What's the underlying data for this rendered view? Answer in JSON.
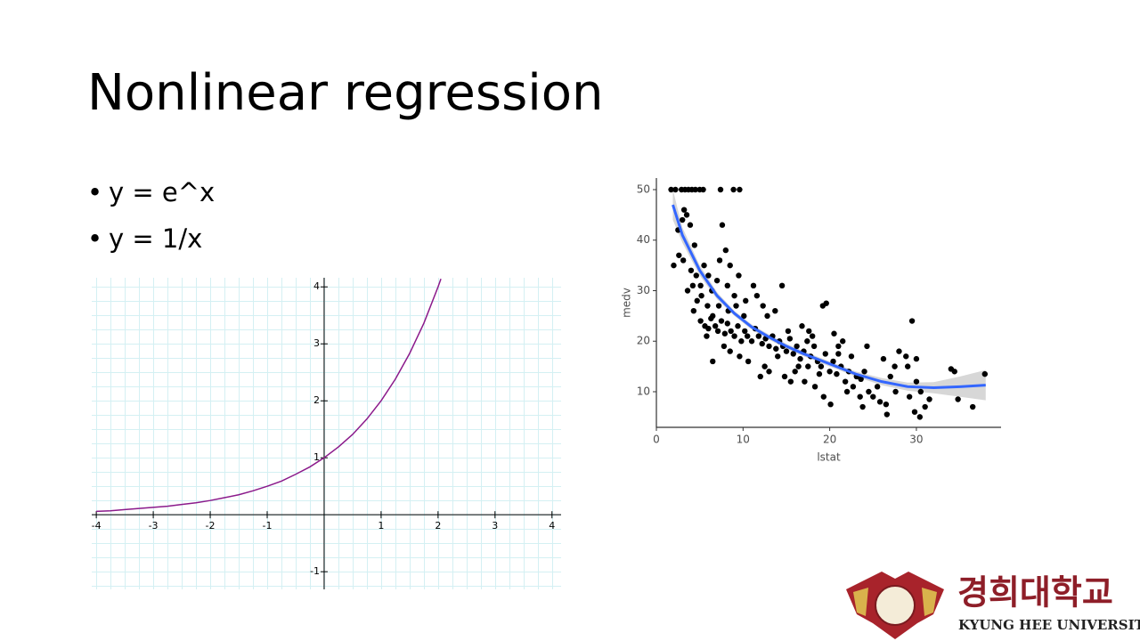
{
  "slide": {
    "title": "Nonlinear regression",
    "bullets": [
      "y = e^x",
      "y = 1/x"
    ]
  },
  "logo": {
    "korean": "경희대학교",
    "english": "KYUNG HEE UNIVERSITY"
  },
  "chart_data": [
    {
      "type": "line",
      "x": [
        -4,
        -3.75,
        -3.5,
        -3.25,
        -3,
        -2.75,
        -2.5,
        -2.25,
        -2,
        -1.75,
        -1.5,
        -1.25,
        -1,
        -0.75,
        -0.5,
        -0.25,
        0,
        0.25,
        0.5,
        0.75,
        1,
        1.25,
        1.5,
        1.75,
        2,
        2.05
      ],
      "series": [
        {
          "color": "#8b1a8b",
          "values": [
            0.06,
            0.07,
            0.09,
            0.11,
            0.13,
            0.15,
            0.18,
            0.21,
            0.25,
            0.3,
            0.35,
            0.42,
            0.5,
            0.59,
            0.71,
            0.84,
            1,
            1.19,
            1.41,
            1.68,
            2,
            2.38,
            2.83,
            3.36,
            4,
            4.14
          ]
        }
      ],
      "xlim": [
        -4.08,
        4.16
      ],
      "ylim": [
        -1.31,
        4.16
      ],
      "xticks": [
        -4,
        -3,
        -2,
        -1,
        1,
        2,
        3,
        4
      ],
      "yticks": [
        -1,
        1,
        2,
        3,
        4
      ]
    },
    {
      "type": "scatter",
      "x_label": "lstat",
      "y_label": "medv",
      "series": [
        {
          "color": "#000000",
          "x": [
            1.7,
            2.2,
            2.9,
            3.3,
            3.7,
            4.1,
            4.5,
            5.0,
            5.4,
            7.4,
            8.9,
            9.6,
            2.5,
            3.0,
            3.2,
            3.5,
            3.9,
            4.4,
            2.0,
            2.6,
            3.1,
            4.0,
            4.6,
            5.1,
            5.5,
            6.0,
            6.4,
            7.0,
            7.3,
            7.6,
            8.0,
            8.5,
            8.2,
            9.0,
            9.5,
            10.3,
            11.2,
            11.6,
            12.3,
            12.8,
            14.5,
            13.7,
            4.2,
            4.7,
            3.6,
            5.2,
            5.9,
            6.5,
            7.2,
            8.3,
            9.2,
            10.1,
            5.1,
            5.6,
            6.0,
            6.3,
            6.8,
            7.1,
            7.5,
            7.9,
            8.2,
            8.6,
            9.0,
            9.4,
            9.8,
            10.2,
            10.5,
            11.0,
            11.4,
            11.8,
            12.2,
            12.6,
            13.0,
            13.4,
            13.8,
            14.2,
            14.6,
            15.0,
            15.4,
            15.8,
            16.2,
            16.6,
            17.0,
            17.4,
            17.8,
            18.2,
            18.6,
            19.0,
            19.5,
            20.0,
            20.4,
            20.8,
            21.3,
            21.8,
            22.2,
            22.7,
            23.1,
            23.6,
            24.0,
            24.5,
            25.0,
            25.5,
            8.5,
            10.6,
            12.5,
            14.0,
            15.2,
            16.8,
            17.6,
            18.0,
            19.2,
            19.6,
            20.5,
            21.0,
            21.5,
            21.0,
            22.5,
            24.3,
            15.5,
            16.0,
            17.1,
            18.3,
            19.3,
            20.1,
            22.0,
            23.5,
            26.5,
            26.6,
            27.0,
            27.5,
            28.0,
            26.2,
            27.6,
            29.5,
            29.2,
            29.8,
            30.4,
            30.0,
            30.5,
            31.0,
            31.5,
            28.8,
            29.0,
            30.0,
            34.0,
            34.4,
            34.8,
            36.5,
            37.9,
            23.8,
            25.8,
            13.0,
            14.8,
            16.4,
            12.0,
            17.5,
            18.8,
            6.5,
            5.8,
            4.3,
            7.8,
            9.6
          ],
          "values": [
            50,
            50,
            50,
            50,
            50,
            50,
            50,
            50,
            50,
            50,
            50,
            50,
            42,
            44,
            46,
            45,
            43,
            39,
            35,
            37,
            36,
            34,
            33,
            31,
            35,
            33,
            30,
            32,
            36,
            43,
            38,
            35,
            31,
            29,
            33,
            28,
            31,
            29,
            27,
            25,
            31,
            26,
            31,
            28,
            30,
            29,
            27,
            25,
            27,
            26,
            27,
            25,
            24,
            23,
            22.5,
            24.5,
            23,
            22,
            24,
            21.5,
            23.5,
            22,
            21,
            23,
            20,
            22,
            21,
            20,
            22.5,
            21,
            19.5,
            20.5,
            19,
            21,
            18.5,
            20,
            19,
            18,
            20.5,
            17.5,
            19,
            16.5,
            18,
            20,
            17,
            19,
            16,
            15,
            17.5,
            14,
            16,
            13.5,
            15,
            12,
            14,
            11,
            13,
            12.5,
            14,
            10,
            9,
            11,
            18,
            16,
            15,
            17,
            22,
            23,
            22,
            21,
            27,
            27.5,
            21.5,
            19,
            20,
            17.5,
            17,
            19,
            12,
            14,
            12,
            11,
            9,
            7.5,
            10,
            9,
            7.5,
            5.5,
            13,
            15,
            18,
            16.5,
            10,
            24,
            9,
            6,
            5,
            12,
            10,
            7,
            8.5,
            17,
            15,
            16.5,
            14.5,
            14,
            8.5,
            7,
            13.5,
            7,
            8,
            14,
            13,
            15,
            13,
            15,
            13.5,
            16,
            21,
            26,
            19,
            17
          ]
        }
      ],
      "smooth": {
        "color": "#3366ff",
        "band_color": "#bdbdbd",
        "x": [
          1.9,
          3,
          5,
          7,
          9,
          11,
          13,
          15,
          17,
          20,
          23,
          26,
          29,
          32,
          35,
          38
        ],
        "values": [
          47,
          41,
          34,
          29,
          25.5,
          22.8,
          20.8,
          19,
          17.5,
          15.5,
          13.5,
          12,
          11,
          10.8,
          11,
          11.3
        ],
        "lower": [
          44,
          39.5,
          33,
          28.3,
          25,
          22.3,
          20.3,
          18.5,
          17,
          15,
          13,
          11.3,
          10.2,
          9.7,
          9,
          8.3
        ],
        "upper": [
          50,
          42.5,
          35,
          29.7,
          26,
          23.3,
          21.3,
          19.5,
          18,
          16,
          14,
          12.7,
          11.8,
          11.9,
          13,
          14.3
        ]
      },
      "xlim": [
        0,
        39.77
      ],
      "ylim": [
        2.95,
        52.29
      ],
      "xticks": [
        0,
        10,
        20,
        30
      ],
      "yticks": [
        10,
        20,
        30,
        40,
        50
      ]
    }
  ]
}
